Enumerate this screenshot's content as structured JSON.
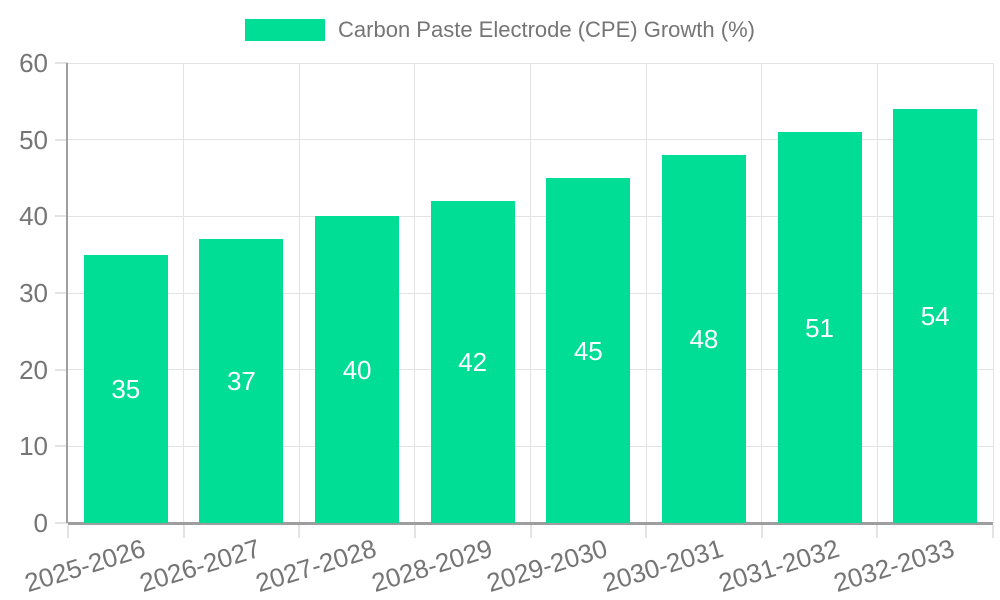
{
  "chart": {
    "background": "#ffffff",
    "legend": {
      "label": "Carbon Paste Electrode (CPE) Growth (%)"
    },
    "colors": {
      "bar": "#00DE95",
      "grid": "#E3E3E3",
      "axis": "#9E9E9E",
      "tick_label": "#757575",
      "data_label": "#FFFFFF"
    }
  },
  "chart_data": {
    "type": "bar",
    "title": "Carbon Paste Electrode (CPE) Growth (%)",
    "categories": [
      "2025-2026",
      "2026-2027",
      "2027-2028",
      "2028-2029",
      "2029-2030",
      "2030-2031",
      "2031-2032",
      "2032-2033"
    ],
    "values": [
      35,
      37,
      40,
      42,
      45,
      48,
      51,
      54
    ],
    "series": [
      {
        "name": "Carbon Paste Electrode (CPE) Growth (%)",
        "values": [
          35,
          37,
          40,
          42,
          45,
          48,
          51,
          54
        ]
      }
    ],
    "xlabel": "",
    "ylabel": "",
    "ylim": [
      0,
      60
    ],
    "yticks": [
      0,
      10,
      20,
      30,
      40,
      50,
      60
    ],
    "grid": true,
    "legend_position": "top-center",
    "data_labels": "inside-center",
    "x_tick_rotation_deg": -17
  }
}
